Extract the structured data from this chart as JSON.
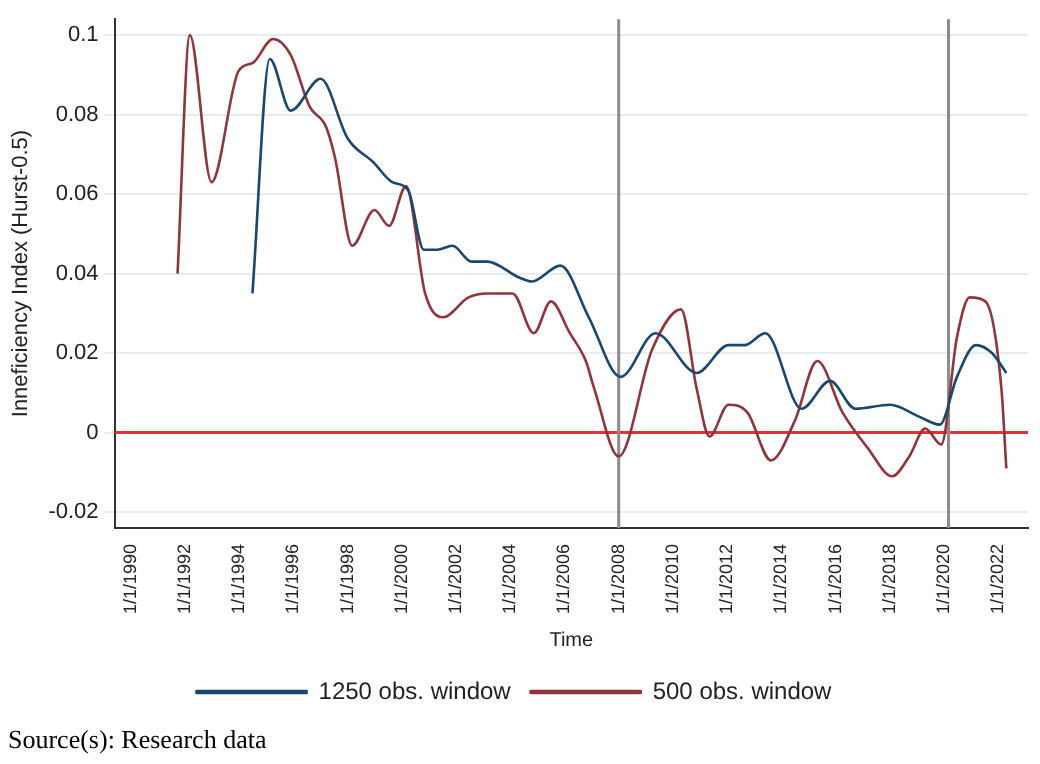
{
  "chart_data": {
    "type": "line",
    "xlabel": "Time",
    "ylabel": "Inneficiency Index (Hurst-0.5)",
    "xlim": [
      "1989-05-27",
      "2023-02-06"
    ],
    "ylim": [
      -0.024,
      0.104
    ],
    "xticks": [
      {
        "value": "1990-01-01",
        "label": "1/1/1990"
      },
      {
        "value": "1992-01-01",
        "label": "1/1/1992"
      },
      {
        "value": "1994-01-01",
        "label": "1/1/1994"
      },
      {
        "value": "1996-01-01",
        "label": "1/1/1996"
      },
      {
        "value": "1998-01-01",
        "label": "1/1/1998"
      },
      {
        "value": "2000-01-01",
        "label": "1/1/2000"
      },
      {
        "value": "2002-01-01",
        "label": "1/1/2002"
      },
      {
        "value": "2004-01-01",
        "label": "1/1/2004"
      },
      {
        "value": "2006-01-01",
        "label": "1/1/2006"
      },
      {
        "value": "2008-01-01",
        "label": "1/1/2008"
      },
      {
        "value": "2010-01-01",
        "label": "1/1/2010"
      },
      {
        "value": "2012-01-01",
        "label": "1/1/2012"
      },
      {
        "value": "2014-01-01",
        "label": "1/1/2014"
      },
      {
        "value": "2016-01-01",
        "label": "1/1/2016"
      },
      {
        "value": "2018-01-01",
        "label": "1/1/2018"
      },
      {
        "value": "2020-01-01",
        "label": "1/1/2020"
      },
      {
        "value": "2022-01-01",
        "label": "1/1/2022"
      }
    ],
    "yticks": [
      -0.02,
      0,
      0.02,
      0.04,
      0.06,
      0.08,
      0.1
    ],
    "series": [
      {
        "name": "1250 obs. window",
        "color": "#1a476f",
        "x": [
          "1994-06-28",
          "1995-02-16",
          "1995-11-25",
          "1997-01-01",
          "1998-01-01",
          "1998-12-13",
          "1999-08-26",
          "2000-03-25",
          "2000-10-23",
          "2001-04-20",
          "2001-11-14",
          "2002-07-27",
          "2003-02-27",
          "2004-04-30",
          "2004-10-19",
          "2005-11-06",
          "2006-11-24",
          "2008-01-26",
          "2009-05-11",
          "2010-11-17",
          "2012-01-19",
          "2012-08-22",
          "2013-05-30",
          "2014-10-01",
          "2015-10-19",
          "2016-09-23",
          "2018-01-08",
          "2019-01-30",
          "2019-11-06",
          "2020-06-24",
          "2021-03-07",
          "2021-10-08",
          "2022-04-20"
        ],
        "values": [
          0.035,
          0.094,
          0.081,
          0.089,
          0.074,
          0.068,
          0.063,
          0.061,
          0.046,
          0.046,
          0.047,
          0.043,
          0.043,
          0.039,
          0.038,
          0.042,
          0.029,
          0.014,
          0.025,
          0.015,
          0.022,
          0.022,
          0.025,
          0.006,
          0.013,
          0.006,
          0.007,
          0.004,
          0.002,
          0.014,
          0.022,
          0.02,
          0.015
        ]
      },
      {
        "name": "500 obs. window",
        "color": "#90353b",
        "x": [
          "1991-09-23",
          "1992-03-06",
          "1992-12-24",
          "1993-12-24",
          "1994-07-02",
          "1995-04-02",
          "1995-11-25",
          "1996-08-07",
          "1997-03-14",
          "1997-07-16",
          "1998-03-03",
          "1998-12-28",
          "1999-07-12",
          "2000-02-27",
          "2000-11-10",
          "2001-07-09",
          "2002-06-17",
          "2003-02-27",
          "2004-02-02",
          "2004-11-13",
          "2005-07-02",
          "2006-03-14",
          "2006-10-15",
          "2007-02-06",
          "2008-01-01",
          "2009-03-29",
          "2010-04-20",
          "2010-11-17",
          "2011-05-08",
          "2012-01-19",
          "2012-10-01",
          "2013-08-14",
          "2014-07-02",
          "2015-04-30",
          "2016-04-05",
          "2017-03-14",
          "2018-02-02",
          "2018-09-20",
          "2019-04-23",
          "2019-11-25",
          "2020-06-24",
          "2020-12-13",
          "2021-07-12",
          "2022-02-13",
          "2022-04-20"
        ],
        "values": [
          0.04,
          0.1,
          0.063,
          0.091,
          0.093,
          0.099,
          0.095,
          0.082,
          0.077,
          0.069,
          0.047,
          0.056,
          0.052,
          0.062,
          0.035,
          0.029,
          0.034,
          0.035,
          0.035,
          0.025,
          0.033,
          0.025,
          0.018,
          0.011,
          -0.006,
          0.021,
          0.031,
          0.011,
          -0.001,
          0.007,
          0.005,
          -0.007,
          0.003,
          0.018,
          0.005,
          -0.004,
          -0.011,
          -0.006,
          0.001,
          -0.003,
          0.024,
          0.034,
          0.033,
          0.011,
          -0.009
        ]
      }
    ],
    "ref_lines": [
      {
        "axis": "y",
        "value": 0,
        "color": "#e0303a"
      },
      {
        "axis": "x",
        "value": "2008-01-01",
        "color": "#8c8c8c"
      },
      {
        "axis": "x",
        "value": "2020-03-02",
        "color": "#8c8c8c"
      }
    ],
    "grid": "y",
    "legend": "bottom",
    "annotations": [
      "Source(s): Research data"
    ]
  }
}
